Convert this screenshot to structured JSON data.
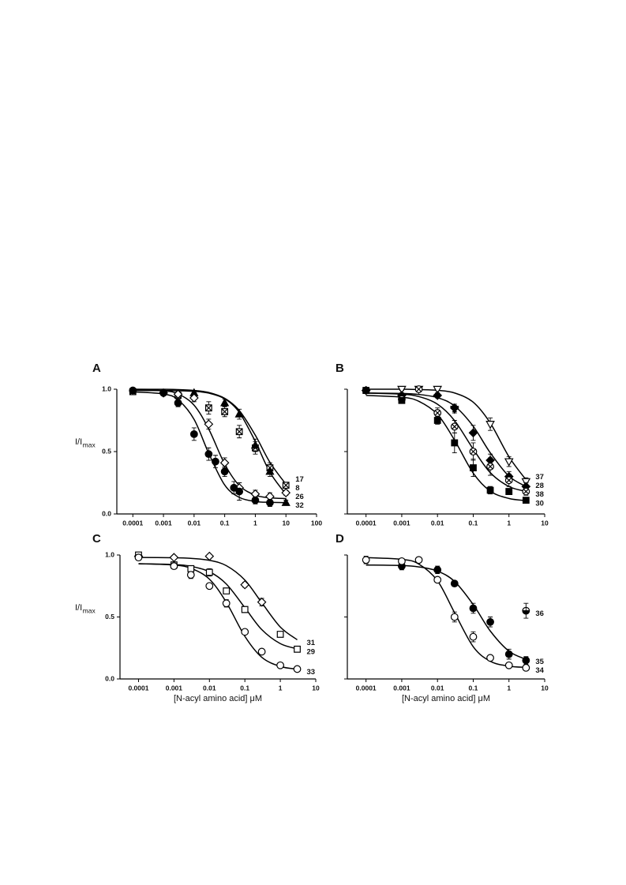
{
  "chart_data": [
    {
      "type": "scatter",
      "label": "A",
      "ylabel": "I/I",
      "ylabel_sub": "max",
      "log_x": true,
      "xlim": [
        3e-05,
        100
      ],
      "ylim": [
        0,
        1
      ],
      "xticks": [
        0.0001,
        0.001,
        0.01,
        0.1,
        1,
        10,
        100
      ],
      "yticks": [
        {
          "value": 0,
          "label": "0.0"
        },
        {
          "value": 0.5,
          "label": "0.5"
        },
        {
          "value": 1,
          "label": "1.0"
        }
      ],
      "ytick_labels": true,
      "fit_x": [
        0.0001,
        0.001,
        0.003,
        0.01,
        0.03,
        0.1,
        0.3,
        1,
        3,
        10
      ],
      "series": [
        {
          "name": "17",
          "marker": "crossed-square",
          "color": "#000000",
          "x": [
            0.0001,
            0.003,
            0.03,
            0.1,
            0.3,
            1,
            3,
            10
          ],
          "values": [
            0.98,
            0.95,
            0.85,
            0.82,
            0.66,
            0.53,
            0.37,
            0.23
          ],
          "errors": [
            0.01,
            0.02,
            0.05,
            0.04,
            0.05,
            0.05,
            0.04,
            0.02
          ],
          "fit_values": [
            1.0,
            0.999,
            0.997,
            0.99,
            0.974,
            0.927,
            0.829,
            0.631,
            0.414,
            0.238
          ]
        },
        {
          "name": "8",
          "marker": "filled-triangle",
          "color": "#000000",
          "x": [
            0.01,
            0.1,
            0.3,
            1,
            3,
            10
          ],
          "values": [
            0.97,
            0.89,
            0.8,
            0.55,
            0.34,
            0.09
          ],
          "errors": [
            0.02,
            0.03,
            0.04,
            0.05,
            0.04,
            0.02
          ],
          "fit_values": [
            0.99,
            0.989,
            0.988,
            0.983,
            0.969,
            0.923,
            0.814,
            0.581,
            0.334,
            0.158
          ]
        },
        {
          "name": "26",
          "marker": "open-diamond",
          "color": "#000000",
          "x": [
            0.001,
            0.003,
            0.01,
            0.03,
            0.1,
            0.3,
            1,
            3,
            10
          ],
          "values": [
            0.97,
            0.96,
            0.93,
            0.72,
            0.41,
            0.21,
            0.16,
            0.14,
            0.17
          ],
          "errors": [
            0.02,
            0.02,
            0.03,
            0.04,
            0.04,
            0.04,
            0.03,
            0.03,
            0.02
          ],
          "fit_values": [
            0.999,
            0.988,
            0.962,
            0.872,
            0.681,
            0.4,
            0.228,
            0.151,
            0.13,
            0.123
          ]
        },
        {
          "name": "32",
          "marker": "filled-circle",
          "color": "#000000",
          "x": [
            0.0001,
            0.001,
            0.003,
            0.01,
            0.03,
            0.05,
            0.1,
            0.2,
            0.3,
            1,
            3
          ],
          "values": [
            0.99,
            0.97,
            0.89,
            0.64,
            0.48,
            0.42,
            0.34,
            0.21,
            0.18,
            0.11,
            0.09
          ],
          "errors": [
            0.01,
            0.02,
            0.03,
            0.05,
            0.05,
            0.05,
            0.04,
            0.05,
            0.07,
            0.03,
            0.03
          ],
          "fit_values": [
            0.979,
            0.962,
            0.915,
            0.758,
            0.487,
            0.232,
            0.133,
            0.1,
            0.093,
            0.091
          ]
        }
      ]
    },
    {
      "type": "scatter",
      "label": "B",
      "log_x": true,
      "xlim": [
        3e-05,
        10
      ],
      "ylim": [
        0,
        1
      ],
      "xticks": [
        0.0001,
        0.001,
        0.01,
        0.1,
        1,
        10
      ],
      "yticks": [
        0,
        0.5,
        1
      ],
      "ytick_labels": false,
      "fit_x": [
        0.0001,
        0.001,
        0.003,
        0.01,
        0.03,
        0.1,
        0.3,
        1,
        3
      ],
      "series": [
        {
          "name": "37",
          "marker": "open-triangle-down",
          "color": "#000000",
          "x": [
            0.001,
            0.003,
            0.01,
            0.03,
            0.3,
            1,
            3
          ],
          "values": [
            1.0,
            1.0,
            1.0,
            0.84,
            0.72,
            0.42,
            0.26
          ],
          "errors": [
            0.01,
            0.01,
            0.01,
            0.03,
            0.05,
            0.04,
            0.03
          ],
          "fit_values": [
            1.0,
            1.0,
            0.997,
            0.991,
            0.97,
            0.896,
            0.729,
            0.459,
            0.274
          ]
        },
        {
          "name": "28",
          "marker": "filled-diamond",
          "color": "#000000",
          "x": [
            0.0001,
            0.001,
            0.01,
            0.03,
            0.1,
            0.3,
            1,
            3
          ],
          "values": [
            0.99,
            0.95,
            0.95,
            0.85,
            0.65,
            0.43,
            0.3,
            0.22
          ],
          "errors": [
            0.01,
            0.02,
            0.02,
            0.03,
            0.06,
            0.05,
            0.04,
            0.03
          ],
          "fit_values": [
            0.97,
            0.966,
            0.958,
            0.932,
            0.866,
            0.703,
            0.49,
            0.303,
            0.22
          ]
        },
        {
          "name": "38",
          "marker": "crossed-circle",
          "color": "#000000",
          "x": [
            0.0001,
            0.001,
            0.003,
            0.01,
            0.03,
            0.1,
            0.3,
            1,
            3
          ],
          "values": [
            0.99,
            0.92,
            1.0,
            0.81,
            0.7,
            0.5,
            0.38,
            0.27,
            0.18
          ],
          "errors": [
            0.01,
            0.02,
            0.01,
            0.04,
            0.05,
            0.07,
            0.07,
            0.05,
            0.03
          ],
          "fit_values": [
            0.969,
            0.96,
            0.941,
            0.88,
            0.749,
            0.52,
            0.331,
            0.22,
            0.181
          ]
        },
        {
          "name": "30",
          "marker": "filled-square",
          "color": "#000000",
          "x": [
            0.0001,
            0.001,
            0.01,
            0.03,
            0.1,
            0.3,
            1,
            3
          ],
          "values": [
            0.99,
            0.91,
            0.75,
            0.57,
            0.37,
            0.19,
            0.18,
            0.11
          ],
          "errors": [
            0.01,
            0.02,
            0.03,
            0.08,
            0.07,
            0.03,
            0.02,
            0.02
          ],
          "fit_values": [
            0.95,
            0.936,
            0.903,
            0.798,
            0.592,
            0.327,
            0.183,
            0.124,
            0.107
          ]
        }
      ]
    },
    {
      "type": "scatter",
      "label": "C",
      "ylabel": "I/I",
      "ylabel_sub": "max",
      "xlabel": "[N-acyl amino acid] μM",
      "log_x": true,
      "xlim": [
        3e-05,
        10
      ],
      "ylim": [
        0,
        1
      ],
      "xticks": [
        0.0001,
        0.001,
        0.01,
        0.1,
        1,
        10
      ],
      "yticks": [
        {
          "value": 0,
          "label": "0.0"
        },
        {
          "value": 0.5,
          "label": "0.5"
        },
        {
          "value": 1,
          "label": "1.0"
        }
      ],
      "ytick_labels": true,
      "fit_x": [
        0.0001,
        0.001,
        0.003,
        0.01,
        0.03,
        0.1,
        0.3,
        1,
        3
      ],
      "series": [
        {
          "name": "31",
          "marker": "open-diamond",
          "color": "#000000",
          "x": [
            0.0001,
            0.001,
            0.01,
            0.1,
            0.3
          ],
          "values": [
            0.99,
            0.98,
            0.99,
            0.76,
            0.62
          ],
          "errors": [
            0.01,
            0.01,
            0.01,
            0.02,
            0.03
          ],
          "fit_values": [
            0.98,
            0.978,
            0.973,
            0.957,
            0.914,
            0.798,
            0.615,
            0.419,
            0.316
          ]
        },
        {
          "name": "29",
          "marker": "open-square",
          "color": "#000000",
          "x": [
            0.0001,
            0.001,
            0.003,
            0.01,
            0.03,
            0.1,
            1,
            3
          ],
          "values": [
            1.0,
            0.92,
            0.89,
            0.86,
            0.71,
            0.56,
            0.36,
            0.24
          ],
          "errors": [
            0.01,
            0.02,
            0.02,
            0.03,
            0.02,
            0.02,
            0.02,
            0.02
          ],
          "fit_values": [
            0.929,
            0.923,
            0.909,
            0.865,
            0.766,
            0.575,
            0.398,
            0.285,
            0.243
          ]
        },
        {
          "name": "33",
          "marker": "open-circle",
          "color": "#000000",
          "x": [
            0.0001,
            0.001,
            0.003,
            0.01,
            0.03,
            0.1,
            0.3,
            1,
            3
          ],
          "values": [
            0.98,
            0.91,
            0.84,
            0.75,
            0.61,
            0.38,
            0.22,
            0.11,
            0.08
          ],
          "errors": [
            0.01,
            0.02,
            0.03,
            0.02,
            0.03,
            0.02,
            0.02,
            0.01,
            0.01
          ],
          "fit_values": [
            0.93,
            0.919,
            0.893,
            0.805,
            0.618,
            0.344,
            0.175,
            0.101,
            0.079
          ]
        }
      ]
    },
    {
      "type": "scatter",
      "label": "D",
      "xlabel": "[N-acyl amino acid] μM",
      "log_x": true,
      "xlim": [
        3e-05,
        10
      ],
      "ylim": [
        0,
        1
      ],
      "xticks": [
        0.0001,
        0.001,
        0.01,
        0.1,
        1,
        10
      ],
      "yticks": [
        0,
        0.5,
        1
      ],
      "ytick_labels": false,
      "fit_x": [
        0.0001,
        0.001,
        0.003,
        0.01,
        0.03,
        0.1,
        0.3,
        1,
        3
      ],
      "series": [
        {
          "name": "36",
          "marker": "half-circle",
          "color": "#000000",
          "x": [
            3
          ],
          "values": [
            0.55
          ],
          "errors": [
            0.06
          ]
        },
        {
          "name": "35",
          "marker": "filled-circle",
          "color": "#000000",
          "x": [
            0.001,
            0.01,
            0.03,
            0.1,
            0.3,
            1,
            3
          ],
          "values": [
            0.91,
            0.88,
            0.77,
            0.57,
            0.46,
            0.2,
            0.15
          ],
          "errors": [
            0.03,
            0.03,
            0.02,
            0.04,
            0.04,
            0.04,
            0.03
          ],
          "fit_values": [
            0.919,
            0.915,
            0.904,
            0.87,
            0.787,
            0.6,
            0.387,
            0.224,
            0.158
          ]
        },
        {
          "name": "34",
          "marker": "open-circle",
          "color": "#000000",
          "x": [
            0.0001,
            0.001,
            0.003,
            0.01,
            0.03,
            0.1,
            0.3,
            1,
            3
          ],
          "values": [
            0.96,
            0.95,
            0.96,
            0.8,
            0.5,
            0.34,
            0.17,
            0.11,
            0.09
          ],
          "errors": [
            0.03,
            0.02,
            0.01,
            0.02,
            0.04,
            0.04,
            0.01,
            0.01,
            0.01
          ],
          "fit_values": [
            0.979,
            0.965,
            0.927,
            0.792,
            0.535,
            0.26,
            0.143,
            0.103,
            0.094
          ]
        }
      ]
    }
  ]
}
